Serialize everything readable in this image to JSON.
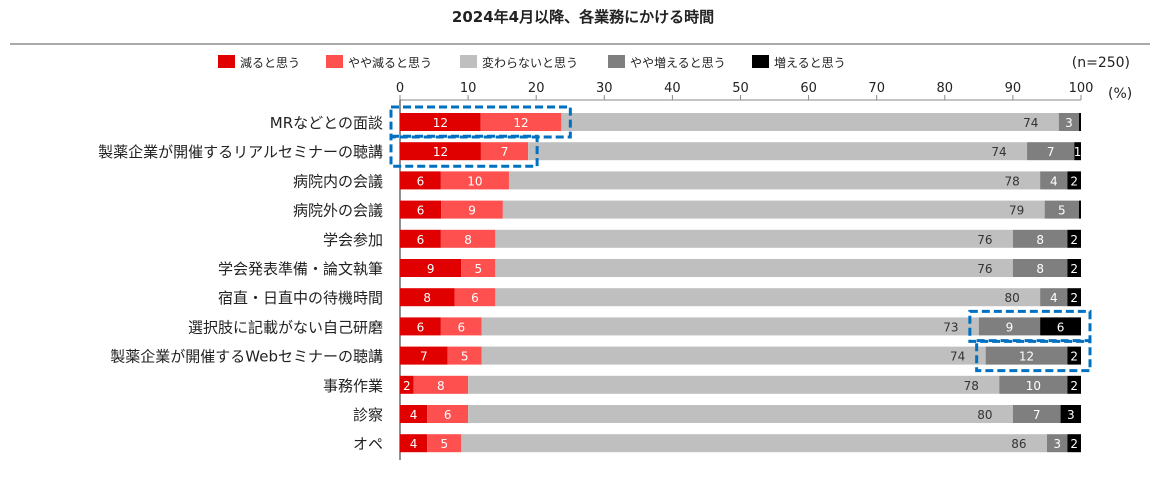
{
  "chart_data": {
    "type": "bar",
    "orientation": "horizontal",
    "stacked": true,
    "title": "2024年4月以降、各業務にかける時間",
    "sample_note": "(n=250)",
    "unit_label": "(%)",
    "xlim": [
      0,
      100
    ],
    "xticks": [
      0,
      10,
      20,
      30,
      40,
      50,
      60,
      70,
      80,
      90,
      100
    ],
    "legend_position": "top",
    "categories": [
      "MRなどとの面談",
      "製薬企業が開催するリアルセミナーの聴講",
      "病院内の会議",
      "病院外の会議",
      "学会参加",
      "学会発表準備・論文執筆",
      "宿直・日直中の待機時間",
      "選択肢に記載がない自己研磨",
      "製薬企業が開催するWebセミナーの聴講",
      "事務作業",
      "診察",
      "オペ"
    ],
    "series": [
      {
        "name": "減ると思う",
        "color": "#E00000",
        "label_color": "#ffffff",
        "values": [
          12,
          12,
          6,
          6,
          6,
          9,
          8,
          6,
          7,
          2,
          4,
          4
        ]
      },
      {
        "name": "やや減ると思う",
        "color": "#FF5050",
        "label_color": "#ffffff",
        "values": [
          12,
          7,
          10,
          9,
          8,
          5,
          6,
          6,
          5,
          8,
          6,
          5
        ]
      },
      {
        "name": "変わらないと思う",
        "color": "#BFBFBF",
        "label_color": "#333333",
        "values": [
          74,
          74,
          78,
          79,
          76,
          76,
          80,
          73,
          74,
          78,
          80,
          86
        ]
      },
      {
        "name": "やや増えると思う",
        "color": "#7F7F7F",
        "label_color": "#ffffff",
        "values": [
          3,
          7,
          4,
          5,
          8,
          8,
          4,
          9,
          12,
          10,
          7,
          3
        ]
      },
      {
        "name": "増えると思う",
        "color": "#000000",
        "label_color": "#ffffff",
        "values": [
          0.3,
          1,
          2,
          0.3,
          2,
          2,
          2,
          6,
          2,
          2,
          3,
          2
        ]
      }
    ],
    "highlighted": [
      {
        "category": "MRなどとの面談",
        "series": [
          "減ると思う",
          "やや減ると思う"
        ]
      },
      {
        "category": "製薬企業が開催するリアルセミナーの聴講",
        "series": [
          "減ると思う",
          "やや減ると思う"
        ]
      },
      {
        "category": "選択肢に記載がない自己研磨",
        "series": [
          "やや増えると思う",
          "増えると思う"
        ]
      },
      {
        "category": "製薬企業が開催するWebセミナーの聴講",
        "series": [
          "やや増えると思う",
          "増えると思う"
        ]
      }
    ],
    "highlight_color": "#0070C0"
  }
}
